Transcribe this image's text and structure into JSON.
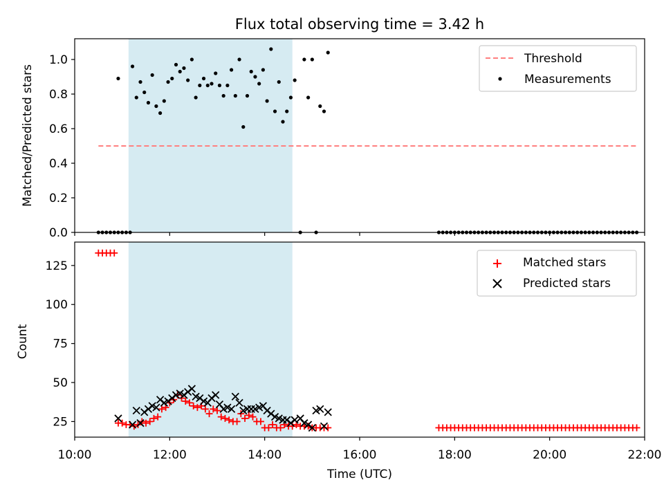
{
  "chart_data": [
    {
      "type": "scatter",
      "title": "Flux total observing time = 3.42 h",
      "ylabel": "Matched/Predicted stars",
      "xlabel": "",
      "xlim": [
        "10:00",
        "22:00"
      ],
      "ylim": [
        0,
        1.12
      ],
      "y_ticks": [
        "0.0",
        "0.2",
        "0.4",
        "0.6",
        "0.8",
        "1.0"
      ],
      "shaded_interval": [
        "11:08",
        "14:35"
      ],
      "shade_color": "#add8e6",
      "legend_position": "upper right",
      "series": [
        {
          "name": "Threshold",
          "style": "dashed-line",
          "color": "#ff7f7f",
          "x": [
            "10:30",
            "21:50"
          ],
          "y": [
            0.5,
            0.5
          ]
        },
        {
          "name": "Measurements",
          "style": "dot",
          "color": "#000000",
          "x": [
            "10:30",
            "10:35",
            "10:40",
            "10:45",
            "10:50",
            "10:55",
            "11:00",
            "11:05",
            "11:10",
            "10:55",
            "11:13",
            "11:18",
            "11:23",
            "11:28",
            "11:33",
            "11:38",
            "11:43",
            "11:48",
            "11:53",
            "11:58",
            "12:03",
            "12:08",
            "12:13",
            "12:18",
            "12:23",
            "12:28",
            "12:33",
            "12:38",
            "12:43",
            "12:48",
            "12:53",
            "12:58",
            "13:03",
            "13:08",
            "13:13",
            "13:18",
            "13:23",
            "13:28",
            "13:33",
            "13:38",
            "13:43",
            "13:48",
            "13:53",
            "13:58",
            "14:03",
            "14:08",
            "14:13",
            "14:18",
            "14:23",
            "14:28",
            "14:33",
            "14:38",
            "14:45",
            "14:50",
            "14:55",
            "15:00",
            "15:05",
            "15:10",
            "15:15",
            "15:20",
            "17:40",
            "17:45",
            "17:50",
            "17:55",
            "18:00",
            "18:05",
            "18:10",
            "18:15",
            "18:20",
            "18:25",
            "18:30",
            "18:35",
            "18:40",
            "18:45",
            "18:50",
            "18:55",
            "19:00",
            "19:05",
            "19:10",
            "19:15",
            "19:20",
            "19:25",
            "19:30",
            "19:35",
            "19:40",
            "19:45",
            "19:50",
            "19:55",
            "20:00",
            "20:05",
            "20:10",
            "20:15",
            "20:20",
            "20:25",
            "20:30",
            "20:35",
            "20:40",
            "20:45",
            "20:50",
            "20:55",
            "21:00",
            "21:05",
            "21:10",
            "21:15",
            "21:20",
            "21:25",
            "21:30",
            "21:35",
            "21:40",
            "21:45",
            "21:50"
          ],
          "y": [
            0,
            0,
            0,
            0,
            0,
            0,
            0,
            0,
            0,
            0.89,
            0.96,
            0.78,
            0.87,
            0.81,
            0.75,
            0.91,
            0.73,
            0.69,
            0.76,
            0.87,
            0.89,
            0.97,
            0.93,
            0.95,
            0.88,
            1.0,
            0.78,
            0.85,
            0.89,
            0.85,
            0.86,
            0.92,
            0.85,
            0.79,
            0.85,
            0.94,
            0.79,
            1.0,
            0.61,
            0.79,
            0.93,
            0.9,
            0.86,
            0.94,
            0.76,
            1.06,
            0.7,
            0.87,
            0.64,
            0.7,
            0.78,
            0.88,
            0,
            1.0,
            0.78,
            1.0,
            0,
            0.73,
            0.7,
            1.04,
            0,
            0,
            0,
            0,
            0,
            0,
            0,
            0,
            0,
            0,
            0,
            0,
            0,
            0,
            0,
            0,
            0,
            0,
            0,
            0,
            0,
            0,
            0,
            0,
            0,
            0,
            0,
            0,
            0,
            0,
            0,
            0,
            0,
            0,
            0,
            0,
            0,
            0,
            0,
            0,
            0,
            0,
            0,
            0,
            0,
            0,
            0,
            0,
            0,
            0,
            0
          ]
        }
      ]
    },
    {
      "type": "scatter",
      "title": "",
      "xlabel": "Time (UTC)",
      "ylabel": "Count",
      "xlim": [
        "10:00",
        "22:00"
      ],
      "ylim": [
        15,
        140
      ],
      "x_ticks": [
        "10:00",
        "12:00",
        "14:00",
        "16:00",
        "18:00",
        "20:00",
        "22:00"
      ],
      "y_ticks": [
        "25",
        "50",
        "75",
        "100",
        "125"
      ],
      "shaded_interval": [
        "11:08",
        "14:35"
      ],
      "shade_color": "#add8e6",
      "legend_position": "upper right",
      "series": [
        {
          "name": "Matched stars",
          "marker": "plus",
          "color": "#ff0000",
          "x": [
            "10:30",
            "10:35",
            "10:40",
            "10:45",
            "10:50",
            "10:55",
            "11:00",
            "11:05",
            "11:10",
            "11:15",
            "11:20",
            "11:25",
            "11:30",
            "11:35",
            "11:40",
            "11:45",
            "11:50",
            "11:55",
            "12:00",
            "12:05",
            "12:10",
            "12:15",
            "12:20",
            "12:25",
            "12:30",
            "12:35",
            "12:40",
            "12:45",
            "12:50",
            "12:55",
            "13:00",
            "13:05",
            "13:10",
            "13:15",
            "13:20",
            "13:25",
            "13:30",
            "13:35",
            "13:40",
            "13:45",
            "13:50",
            "13:55",
            "14:00",
            "14:05",
            "14:10",
            "14:15",
            "14:20",
            "14:25",
            "14:30",
            "14:35",
            "14:40",
            "14:45",
            "14:50",
            "14:55",
            "15:00",
            "15:05",
            "15:10",
            "15:15",
            "15:20",
            "17:40",
            "17:45",
            "17:50",
            "17:55",
            "18:00",
            "18:05",
            "18:10",
            "18:15",
            "18:20",
            "18:25",
            "18:30",
            "18:35",
            "18:40",
            "18:45",
            "18:50",
            "18:55",
            "19:00",
            "19:05",
            "19:10",
            "19:15",
            "19:20",
            "19:25",
            "19:30",
            "19:35",
            "19:40",
            "19:45",
            "19:50",
            "19:55",
            "20:00",
            "20:05",
            "20:10",
            "20:15",
            "20:20",
            "20:25",
            "20:30",
            "20:35",
            "20:40",
            "20:45",
            "20:50",
            "20:55",
            "21:00",
            "21:05",
            "21:10",
            "21:15",
            "21:20",
            "21:25",
            "21:30",
            "21:35",
            "21:40",
            "21:45",
            "21:50"
          ],
          "y": [
            133,
            133,
            133,
            133,
            133,
            24,
            24,
            23,
            23,
            22,
            23,
            25,
            24,
            25,
            27,
            28,
            33,
            34,
            37,
            39,
            42,
            40,
            38,
            37,
            35,
            34,
            35,
            33,
            30,
            33,
            32,
            28,
            27,
            26,
            25,
            25,
            30,
            27,
            29,
            28,
            25,
            25,
            21,
            21,
            23,
            21,
            21,
            23,
            22,
            22,
            23,
            22,
            22,
            22,
            21,
            21,
            21,
            21,
            21,
            21,
            21,
            21,
            21,
            21,
            21,
            21,
            21,
            21,
            21,
            21,
            21,
            21,
            21,
            21,
            21,
            21,
            21,
            21,
            21,
            21,
            21,
            21,
            21,
            21,
            21,
            21,
            21,
            21,
            21,
            21,
            21,
            21,
            21,
            21,
            21,
            21,
            21,
            21,
            21,
            21,
            21,
            21,
            21,
            21,
            21,
            21,
            21,
            21,
            21,
            21
          ]
        },
        {
          "name": "Predicted stars",
          "marker": "x",
          "color": "#000000",
          "x": [
            "10:55",
            "11:13",
            "11:18",
            "11:23",
            "11:28",
            "11:33",
            "11:38",
            "11:43",
            "11:48",
            "11:53",
            "11:58",
            "12:03",
            "12:08",
            "12:13",
            "12:18",
            "12:23",
            "12:28",
            "12:33",
            "12:38",
            "12:43",
            "12:48",
            "12:53",
            "12:58",
            "13:03",
            "13:08",
            "13:13",
            "13:18",
            "13:23",
            "13:28",
            "13:33",
            "13:38",
            "13:43",
            "13:48",
            "13:53",
            "13:58",
            "14:03",
            "14:08",
            "14:13",
            "14:18",
            "14:23",
            "14:28",
            "14:33",
            "14:38",
            "14:45",
            "14:50",
            "14:55",
            "15:00",
            "15:05",
            "15:10",
            "15:15",
            "15:20"
          ],
          "y": [
            27,
            23,
            32,
            24,
            31,
            33,
            35,
            34,
            39,
            37,
            38,
            40,
            42,
            43,
            42,
            44,
            46,
            41,
            40,
            38,
            37,
            40,
            42,
            36,
            33,
            34,
            33,
            41,
            37,
            32,
            33,
            33,
            33,
            34,
            35,
            32,
            30,
            28,
            27,
            26,
            26,
            24,
            26,
            27,
            24,
            23,
            21,
            32,
            33,
            22,
            31
          ]
        }
      ]
    }
  ]
}
